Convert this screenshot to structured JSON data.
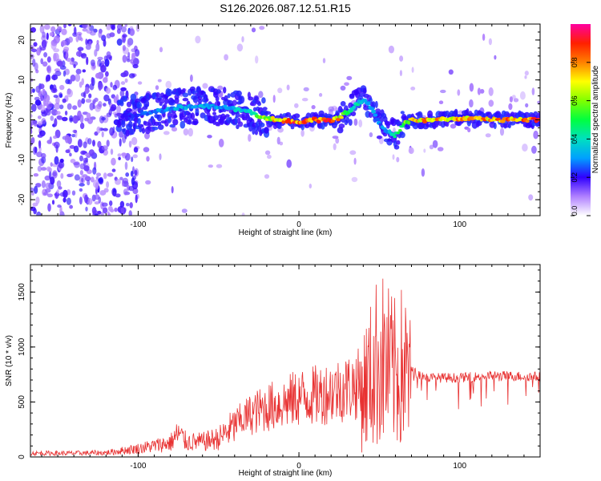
{
  "title": "S126.2026.087.12.51.R15",
  "colors": {
    "line": "#e83232",
    "axis": "#000000",
    "background": "#ffffff"
  },
  "chart_data": [
    {
      "type": "heatmap",
      "name": "spectrogram",
      "xlabel": "Height of straight line (km)",
      "ylabel": "Frequency (Hz)",
      "xlim": [
        -167,
        150
      ],
      "ylim": [
        -24,
        24
      ],
      "xticks": [
        -100,
        0,
        100
      ],
      "xtick_labels": [
        "-100",
        "0",
        "100"
      ],
      "yticks": [
        -20,
        -10,
        0,
        10,
        20
      ],
      "ytick_labels": [
        "-20",
        "-10",
        "0",
        "10",
        "20"
      ],
      "colorbar": {
        "label": "Normalized spectral amplitude",
        "range": [
          0,
          1
        ],
        "ticks": [
          0.0,
          0.2,
          0.4,
          0.6,
          0.8
        ],
        "tick_labels": [
          "0.0",
          "0.2",
          "0.4",
          "0.6",
          "0.8"
        ]
      },
      "ridge": {
        "x": [
          -110,
          -90,
          -75,
          -60,
          -45,
          -35,
          -25,
          -15,
          0,
          10,
          20,
          25,
          30,
          35,
          40,
          45,
          50,
          55,
          60,
          65,
          70,
          80,
          100,
          120,
          150
        ],
        "freq": [
          1,
          2,
          3,
          3.5,
          3,
          2.5,
          1,
          0,
          -0.5,
          0,
          0,
          0.5,
          2,
          3.5,
          5,
          3,
          -1,
          -3,
          -4,
          -1,
          0,
          0,
          0.5,
          0,
          0
        ],
        "amplitude": [
          0.2,
          0.3,
          0.35,
          0.35,
          0.35,
          0.4,
          0.55,
          0.8,
          0.95,
          0.95,
          0.9,
          0.8,
          0.5,
          0.45,
          0.4,
          0.35,
          0.3,
          0.35,
          0.45,
          0.6,
          0.75,
          0.85,
          0.8,
          0.85,
          0.9
        ]
      },
      "noise_region_x": [
        -167,
        -100
      ]
    },
    {
      "type": "line",
      "name": "snr",
      "xlabel": "Height of straight line (km)",
      "ylabel": "SNR (10 * v/v)",
      "xlim": [
        -167,
        150
      ],
      "ylim": [
        0,
        1750
      ],
      "xticks": [
        -100,
        0,
        100
      ],
      "xtick_labels": [
        "-100",
        "0",
        "100"
      ],
      "yticks": [
        0,
        500,
        1000,
        1500
      ],
      "ytick_labels": [
        "0",
        "500",
        "1000",
        "1500"
      ],
      "series": [
        {
          "name": "SNR",
          "x": [
            -167,
            -140,
            -120,
            -100,
            -90,
            -80,
            -75,
            -70,
            -60,
            -50,
            -40,
            -30,
            -20,
            -10,
            0,
            10,
            20,
            30,
            40,
            45,
            50,
            55,
            60,
            65,
            70,
            80,
            100,
            120,
            150
          ],
          "y": [
            40,
            40,
            45,
            90,
            120,
            150,
            250,
            160,
            160,
            200,
            330,
            430,
            500,
            540,
            600,
            620,
            660,
            700,
            750,
            900,
            1100,
            1000,
            900,
            1000,
            780,
            720,
            720,
            740,
            730
          ]
        }
      ]
    }
  ]
}
